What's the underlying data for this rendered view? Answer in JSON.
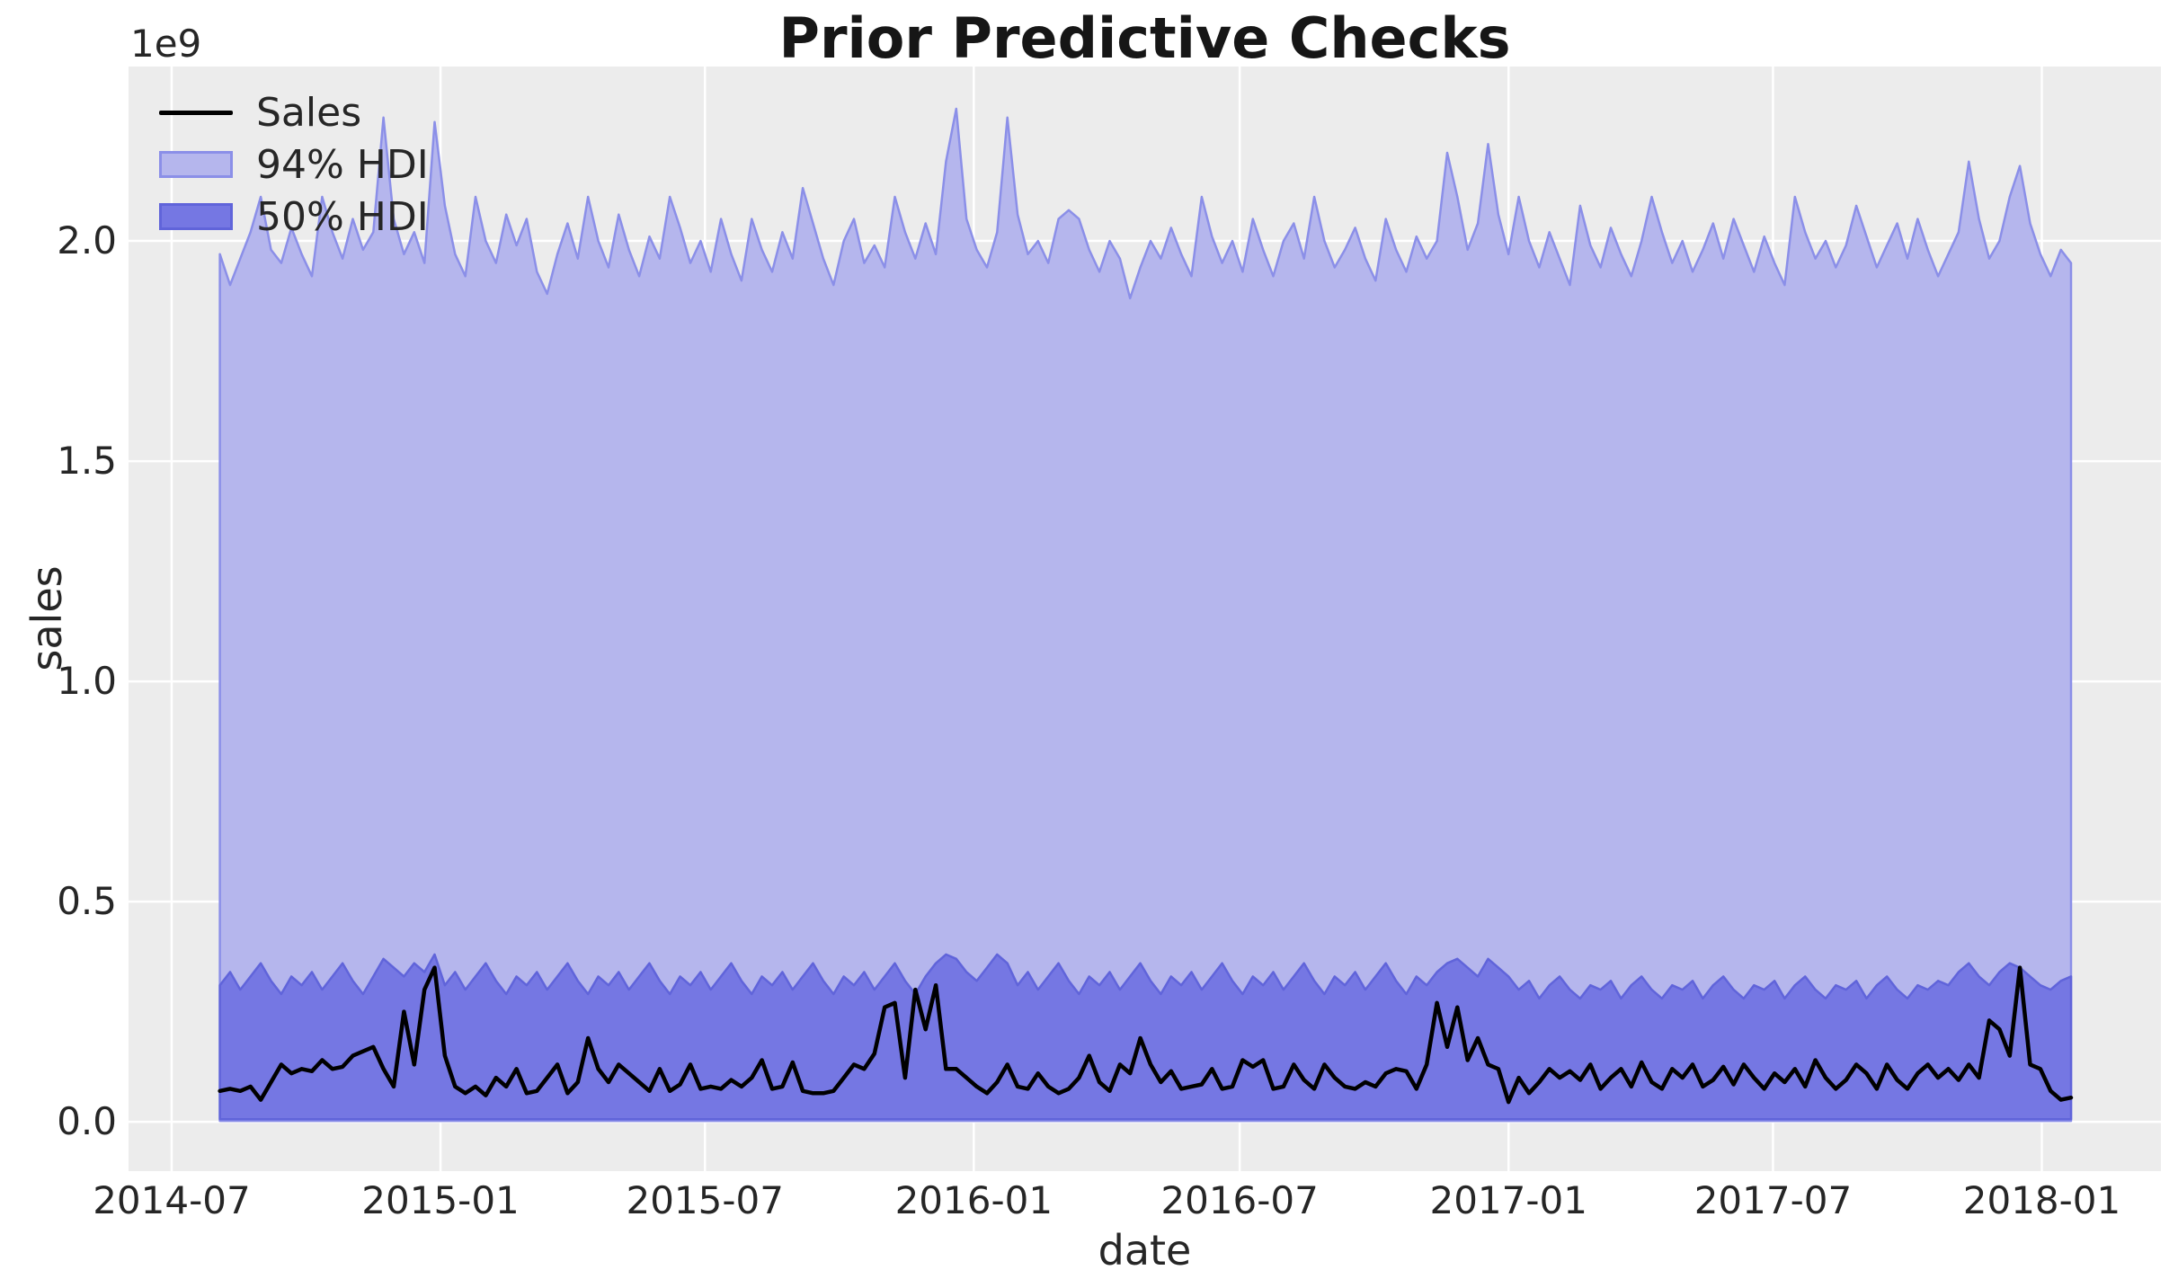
{
  "figure": {
    "background_color": "#ffffff",
    "axes_background_color": "#ececec",
    "grid_color": "#ffffff"
  },
  "legend": {
    "items": [
      {
        "label": "Sales",
        "type": "line",
        "color": "#000000"
      },
      {
        "label": "94% HDI",
        "type": "patch",
        "fill": "#b5b6ed",
        "edge": "#8b8fe8"
      },
      {
        "label": "50% HDI",
        "type": "patch",
        "fill": "#7577e3",
        "edge": "#6064da"
      }
    ]
  },
  "chart_data": {
    "type": "area",
    "title": "Prior Predictive Checks",
    "xlabel": "date",
    "ylabel": "sales",
    "y_offset_text": "1e9",
    "units": "1e9",
    "grid": true,
    "legend_position": "upper left",
    "ylim": [
      -0.112,
      2.396
    ],
    "xlim_days": [
      -29.5,
      1361.5
    ],
    "y_ticks": [
      {
        "label": "0.0",
        "value": 0.0
      },
      {
        "label": "0.5",
        "value": 0.5
      },
      {
        "label": "1.0",
        "value": 1.0
      },
      {
        "label": "1.5",
        "value": 1.5
      },
      {
        "label": "2.0",
        "value": 2.0
      }
    ],
    "x_ticks": [
      {
        "label": "2014-07",
        "day": 0
      },
      {
        "label": "2015-01",
        "day": 184
      },
      {
        "label": "2015-07",
        "day": 365
      },
      {
        "label": "2016-01",
        "day": 549
      },
      {
        "label": "2016-07",
        "day": 731
      },
      {
        "label": "2017-01",
        "day": 915
      },
      {
        "label": "2017-07",
        "day": 1096
      },
      {
        "label": "2018-01",
        "day": 1280
      }
    ],
    "x_start_date": "2014-08-03",
    "x_start_day": 33,
    "x_step_days": 7,
    "n_points": 182,
    "series": [
      {
        "name": "Sales",
        "type": "line",
        "color": "#000000",
        "values": [
          0.07,
          0.075,
          0.07,
          0.08,
          0.05,
          0.09,
          0.13,
          0.11,
          0.12,
          0.115,
          0.14,
          0.12,
          0.125,
          0.15,
          0.16,
          0.17,
          0.12,
          0.08,
          0.25,
          0.13,
          0.3,
          0.35,
          0.15,
          0.08,
          0.065,
          0.08,
          0.06,
          0.1,
          0.08,
          0.12,
          0.065,
          0.07,
          0.1,
          0.13,
          0.065,
          0.09,
          0.19,
          0.12,
          0.09,
          0.13,
          0.11,
          0.09,
          0.07,
          0.12,
          0.07,
          0.085,
          0.13,
          0.075,
          0.08,
          0.075,
          0.095,
          0.08,
          0.1,
          0.14,
          0.075,
          0.08,
          0.135,
          0.07,
          0.065,
          0.065,
          0.07,
          0.1,
          0.13,
          0.12,
          0.155,
          0.26,
          0.27,
          0.1,
          0.3,
          0.21,
          0.31,
          0.12,
          0.12,
          0.1,
          0.08,
          0.065,
          0.09,
          0.13,
          0.08,
          0.075,
          0.11,
          0.08,
          0.065,
          0.075,
          0.1,
          0.15,
          0.09,
          0.07,
          0.13,
          0.11,
          0.19,
          0.13,
          0.09,
          0.115,
          0.075,
          0.08,
          0.085,
          0.12,
          0.075,
          0.08,
          0.14,
          0.125,
          0.14,
          0.075,
          0.08,
          0.13,
          0.095,
          0.075,
          0.13,
          0.1,
          0.08,
          0.075,
          0.09,
          0.08,
          0.11,
          0.12,
          0.115,
          0.075,
          0.13,
          0.27,
          0.17,
          0.26,
          0.14,
          0.19,
          0.13,
          0.12,
          0.045,
          0.1,
          0.065,
          0.09,
          0.12,
          0.1,
          0.115,
          0.095,
          0.13,
          0.075,
          0.1,
          0.12,
          0.08,
          0.135,
          0.09,
          0.075,
          0.12,
          0.1,
          0.13,
          0.08,
          0.095,
          0.125,
          0.085,
          0.13,
          0.1,
          0.075,
          0.11,
          0.09,
          0.12,
          0.08,
          0.14,
          0.1,
          0.075,
          0.095,
          0.13,
          0.11,
          0.075,
          0.13,
          0.095,
          0.075,
          0.11,
          0.13,
          0.1,
          0.12,
          0.095,
          0.13,
          0.1,
          0.23,
          0.21,
          0.15,
          0.35,
          0.13,
          0.12,
          0.07,
          0.05,
          0.055
        ]
      },
      {
        "name": "94% HDI",
        "type": "band",
        "fill": "#b5b6ed",
        "edge": "#8b8fe8",
        "lower_constant": 0.002,
        "upper": [
          1.97,
          1.9,
          1.96,
          2.02,
          2.1,
          1.98,
          1.95,
          2.03,
          1.97,
          1.92,
          2.1,
          2.02,
          1.96,
          2.05,
          1.98,
          2.02,
          2.28,
          2.05,
          1.97,
          2.02,
          1.95,
          2.27,
          2.08,
          1.97,
          1.92,
          2.1,
          2.0,
          1.95,
          2.06,
          1.99,
          2.05,
          1.93,
          1.88,
          1.97,
          2.04,
          1.96,
          2.1,
          2.0,
          1.94,
          2.06,
          1.98,
          1.92,
          2.01,
          1.96,
          2.1,
          2.03,
          1.95,
          2.0,
          1.93,
          2.05,
          1.97,
          1.91,
          2.05,
          1.98,
          1.93,
          2.02,
          1.96,
          2.12,
          2.04,
          1.96,
          1.9,
          2.0,
          2.05,
          1.95,
          1.99,
          1.94,
          2.1,
          2.02,
          1.96,
          2.04,
          1.97,
          2.18,
          2.3,
          2.05,
          1.98,
          1.94,
          2.02,
          2.28,
          2.06,
          1.97,
          2.0,
          1.95,
          2.05,
          2.07,
          2.05,
          1.98,
          1.93,
          2.0,
          1.96,
          1.87,
          1.94,
          2.0,
          1.96,
          2.03,
          1.97,
          1.92,
          2.1,
          2.01,
          1.95,
          2.0,
          1.93,
          2.05,
          1.98,
          1.92,
          2.0,
          2.04,
          1.96,
          2.1,
          2.0,
          1.94,
          1.98,
          2.03,
          1.96,
          1.91,
          2.05,
          1.98,
          1.93,
          2.01,
          1.96,
          2.0,
          2.2,
          2.1,
          1.98,
          2.04,
          2.22,
          2.06,
          1.97,
          2.1,
          2.0,
          1.94,
          2.02,
          1.96,
          1.9,
          2.08,
          1.99,
          1.94,
          2.03,
          1.97,
          1.92,
          2.0,
          2.1,
          2.02,
          1.95,
          2.0,
          1.93,
          1.98,
          2.04,
          1.96,
          2.05,
          1.99,
          1.93,
          2.01,
          1.95,
          1.9,
          2.1,
          2.02,
          1.96,
          2.0,
          1.94,
          1.99,
          2.08,
          2.01,
          1.94,
          1.99,
          2.04,
          1.96,
          2.05,
          1.98,
          1.92,
          1.97,
          2.02,
          2.18,
          2.05,
          1.96,
          2.0,
          2.1,
          2.17,
          2.04,
          1.97,
          1.92,
          1.98,
          1.95
        ]
      },
      {
        "name": "50% HDI",
        "type": "band",
        "fill": "#7577e3",
        "edge": "#6064da",
        "lower_constant": 0.006,
        "upper": [
          0.31,
          0.34,
          0.3,
          0.33,
          0.36,
          0.32,
          0.29,
          0.33,
          0.31,
          0.34,
          0.3,
          0.33,
          0.36,
          0.32,
          0.29,
          0.33,
          0.37,
          0.35,
          0.33,
          0.36,
          0.34,
          0.38,
          0.31,
          0.34,
          0.3,
          0.33,
          0.36,
          0.32,
          0.29,
          0.33,
          0.31,
          0.34,
          0.3,
          0.33,
          0.36,
          0.32,
          0.29,
          0.33,
          0.31,
          0.34,
          0.3,
          0.33,
          0.36,
          0.32,
          0.29,
          0.33,
          0.31,
          0.34,
          0.3,
          0.33,
          0.36,
          0.32,
          0.29,
          0.33,
          0.31,
          0.34,
          0.3,
          0.33,
          0.36,
          0.32,
          0.29,
          0.33,
          0.31,
          0.34,
          0.3,
          0.33,
          0.36,
          0.32,
          0.29,
          0.33,
          0.36,
          0.38,
          0.37,
          0.34,
          0.32,
          0.35,
          0.38,
          0.36,
          0.31,
          0.34,
          0.3,
          0.33,
          0.36,
          0.32,
          0.29,
          0.33,
          0.31,
          0.34,
          0.3,
          0.33,
          0.36,
          0.32,
          0.29,
          0.33,
          0.31,
          0.34,
          0.3,
          0.33,
          0.36,
          0.32,
          0.29,
          0.33,
          0.31,
          0.34,
          0.3,
          0.33,
          0.36,
          0.32,
          0.29,
          0.33,
          0.31,
          0.34,
          0.3,
          0.33,
          0.36,
          0.32,
          0.29,
          0.33,
          0.31,
          0.34,
          0.36,
          0.37,
          0.35,
          0.33,
          0.37,
          0.35,
          0.33,
          0.3,
          0.32,
          0.28,
          0.31,
          0.33,
          0.3,
          0.28,
          0.31,
          0.3,
          0.32,
          0.28,
          0.31,
          0.33,
          0.3,
          0.28,
          0.31,
          0.3,
          0.32,
          0.28,
          0.31,
          0.33,
          0.3,
          0.28,
          0.31,
          0.3,
          0.32,
          0.28,
          0.31,
          0.33,
          0.3,
          0.28,
          0.31,
          0.3,
          0.32,
          0.28,
          0.31,
          0.33,
          0.3,
          0.28,
          0.31,
          0.3,
          0.32,
          0.31,
          0.34,
          0.36,
          0.33,
          0.31,
          0.34,
          0.36,
          0.35,
          0.33,
          0.31,
          0.3,
          0.32,
          0.33
        ]
      }
    ]
  }
}
